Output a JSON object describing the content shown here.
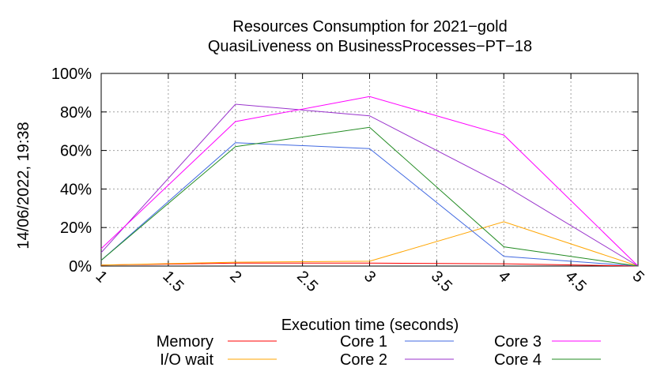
{
  "chart_data": {
    "type": "line",
    "title": "Resources Consumption for 2021−gold",
    "subtitle": "QuasiLiveness on BusinessProcesses−PT−18",
    "xlabel": "Execution time (seconds)",
    "ylabel": "",
    "timestamp": "14/06/2022, 19:38",
    "xlim": [
      1,
      5
    ],
    "ylim": [
      0,
      100
    ],
    "x_ticks": [
      "1",
      "1.5",
      "2",
      "2.5",
      "3",
      "3.5",
      "4",
      "4.5",
      "5"
    ],
    "y_ticks": [
      "0%",
      "20%",
      "40%",
      "60%",
      "80%",
      "100%"
    ],
    "grid": true,
    "legend_position": "bottom",
    "x": [
      1,
      2,
      3,
      4,
      5
    ],
    "series": [
      {
        "name": "Memory",
        "color": "#ff0000",
        "values": [
          0.5,
          1.5,
          1.5,
          1.2,
          0
        ]
      },
      {
        "name": "I/O wait",
        "color": "#ffa500",
        "values": [
          0.5,
          2,
          2.5,
          23,
          0
        ]
      },
      {
        "name": "Core 1",
        "color": "#4169e1",
        "values": [
          3,
          64,
          61,
          5,
          0
        ]
      },
      {
        "name": "Core 2",
        "color": "#9932cc",
        "values": [
          7,
          84,
          78,
          42,
          0
        ]
      },
      {
        "name": "Core 3",
        "color": "#ff00ff",
        "values": [
          9,
          75,
          88,
          68,
          0
        ]
      },
      {
        "name": "Core 4",
        "color": "#228b22",
        "values": [
          3,
          62,
          72,
          10,
          0
        ]
      }
    ]
  }
}
